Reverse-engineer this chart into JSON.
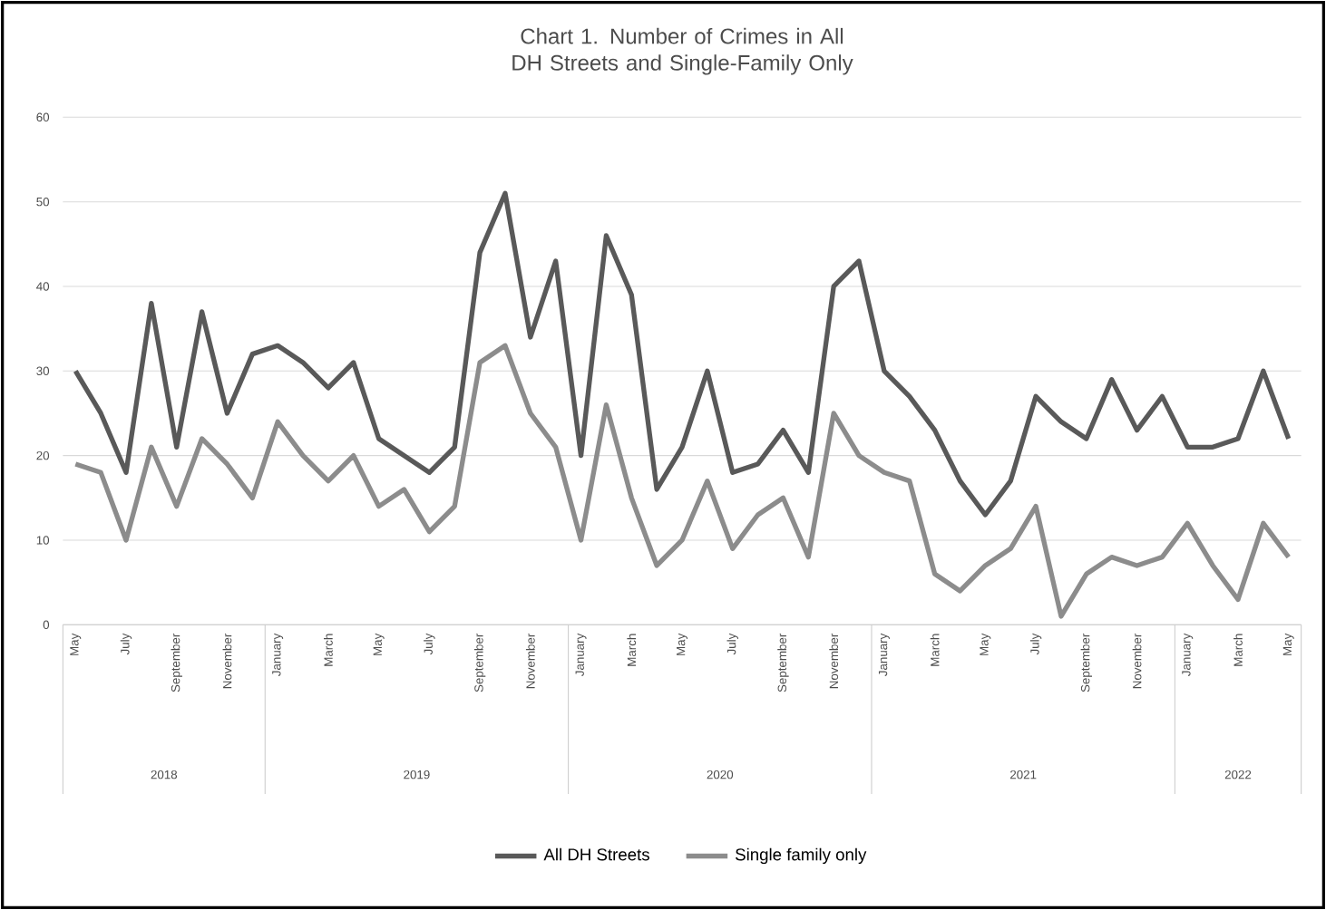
{
  "chart_data": {
    "type": "line",
    "title": "Chart 1. Number of Crimes in All DH  Streets and Single-Family Only",
    "categories": [
      "May",
      null,
      "July",
      null,
      "September",
      null,
      "November",
      null,
      "January",
      null,
      "March",
      null,
      "May",
      null,
      "July",
      null,
      "September",
      null,
      "November",
      null,
      "January",
      null,
      "March",
      null,
      "May",
      null,
      "July",
      null,
      "September",
      null,
      "November",
      null,
      "January",
      null,
      "March",
      null,
      "May",
      null,
      "July",
      null,
      "September",
      null,
      "November",
      null,
      "January",
      null,
      "March",
      null,
      "May"
    ],
    "series": [
      {
        "name": "All DH Streets",
        "color": "#595959",
        "values": [
          30,
          25,
          18,
          38,
          21,
          37,
          25,
          32,
          33,
          31,
          28,
          31,
          22,
          20,
          18,
          21,
          44,
          51,
          34,
          43,
          20,
          46,
          39,
          16,
          21,
          30,
          18,
          19,
          23,
          18,
          40,
          43,
          30,
          27,
          23,
          17,
          13,
          17,
          27,
          24,
          22,
          29,
          23,
          27,
          21,
          21,
          22,
          30,
          22
        ]
      },
      {
        "name": "Single family only",
        "color": "#8c8c8c",
        "values": [
          19,
          18,
          10,
          21,
          14,
          22,
          19,
          15,
          24,
          20,
          17,
          20,
          14,
          16,
          11,
          14,
          31,
          33,
          25,
          21,
          10,
          26,
          15,
          7,
          10,
          17,
          9,
          13,
          15,
          8,
          25,
          20,
          18,
          17,
          6,
          4,
          7,
          9,
          14,
          1,
          6,
          8,
          7,
          8,
          12,
          7,
          3,
          12,
          8
        ]
      }
    ],
    "ylim": [
      0,
      60
    ],
    "yticks": [
      0,
      10,
      20,
      30,
      40,
      50,
      60
    ],
    "grid": "y",
    "legend": "bottom",
    "marker": "none",
    "line_style": "solid",
    "annotations": [
      "2018",
      "2019",
      "2020",
      "2021",
      "2022"
    ]
  }
}
